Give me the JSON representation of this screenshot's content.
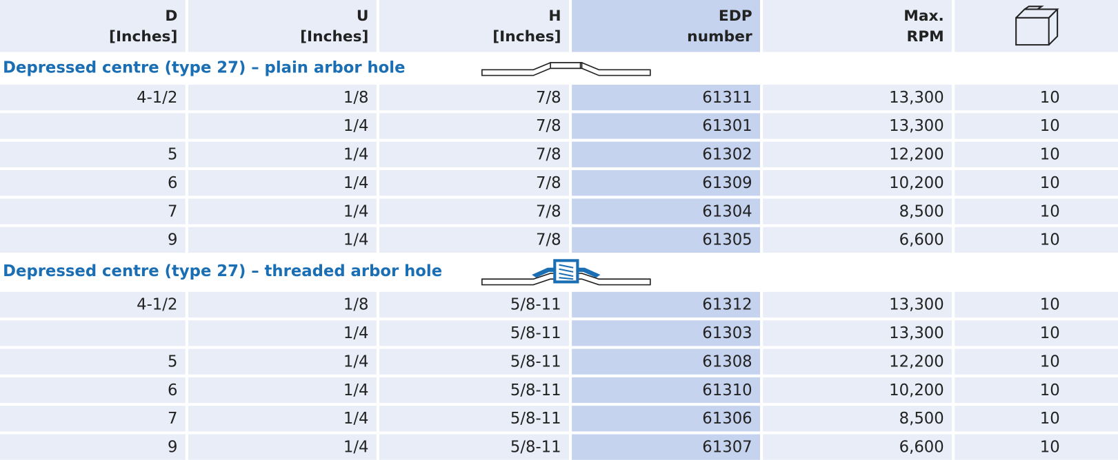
{
  "header": {
    "columns": [
      {
        "line1": "D",
        "line2": "[Inches]"
      },
      {
        "line1": "U",
        "line2": "[Inches]"
      },
      {
        "line1": "H",
        "line2": "[Inches]"
      },
      {
        "line1": "EDP",
        "line2": "number"
      },
      {
        "line1": "Max.",
        "line2": "RPM"
      }
    ]
  },
  "sections": [
    {
      "title": "Depressed centre (type 27) – plain arbor hole",
      "rows": [
        [
          "4-1/2",
          "1/8",
          "7/8",
          "61311",
          "13,300",
          "10"
        ],
        [
          null,
          "1/4",
          "7/8",
          "61301",
          "13,300",
          "10"
        ],
        [
          "5",
          "1/4",
          "7/8",
          "61302",
          "12,200",
          "10"
        ],
        [
          "6",
          "1/4",
          "7/8",
          "61309",
          "10,200",
          "10"
        ],
        [
          "7",
          "1/4",
          "7/8",
          "61304",
          "8,500",
          "10"
        ],
        [
          "9",
          "1/4",
          "7/8",
          "61305",
          "6,600",
          "10"
        ]
      ]
    },
    {
      "title": "Depressed centre (type 27) – threaded arbor hole",
      "rows": [
        [
          "4-1/2",
          "1/8",
          "5/8-11",
          "61312",
          "13,300",
          "10"
        ],
        [
          null,
          "1/4",
          "5/8-11",
          "61303",
          "13,300",
          "10"
        ],
        [
          "5",
          "1/4",
          "5/8-11",
          "61308",
          "12,200",
          "10"
        ],
        [
          "6",
          "1/4",
          "5/8-11",
          "61310",
          "10,200",
          "10"
        ],
        [
          "7",
          "1/4",
          "5/8-11",
          "61306",
          "8,500",
          "10"
        ],
        [
          "9",
          "1/4",
          "5/8-11",
          "61307",
          "6,600",
          "10"
        ]
      ]
    }
  ]
}
